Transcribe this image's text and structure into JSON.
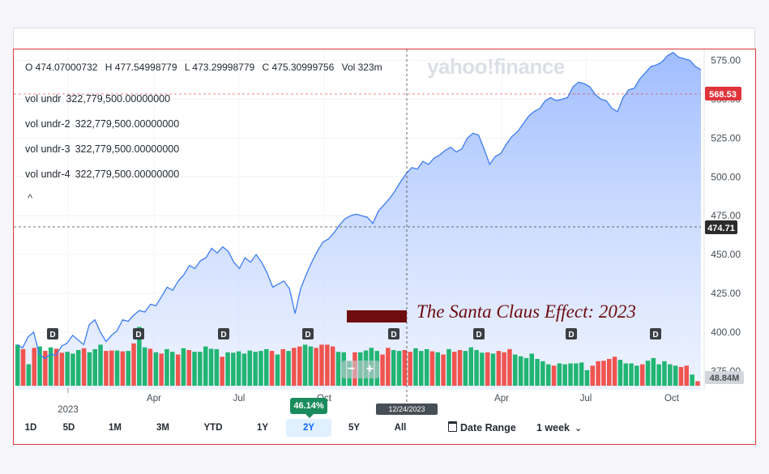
{
  "legend": {
    "open": "O 474.07000732",
    "high": "H 477.54998779",
    "low": "L 473.29998779",
    "close": "C 475.30999756",
    "vol": "Vol 323m"
  },
  "vol_indicators": [
    {
      "label": "vol undr",
      "value": "322,779,500.00000000"
    },
    {
      "label": "vol undr-2",
      "value": "322,779,500.00000000"
    },
    {
      "label": "vol undr-3",
      "value": "322,779,500.00000000"
    },
    {
      "label": "vol undr-4",
      "value": "322,779,500.00000000"
    }
  ],
  "collapse_symbol": "^",
  "watermark": "yahoo!finance",
  "annotation": "The Santa Claus Effect: 2023",
  "zoom": {
    "minus": "−",
    "plus": "+"
  },
  "crosshair_price": "474.71",
  "crosshair_date": "12/24/2023",
  "current_price": "568.53",
  "volume_label": "48.84M",
  "percent_change": "46.14%",
  "range_buttons": [
    "1D",
    "5D",
    "1M",
    "3M",
    "YTD",
    "1Y",
    "2Y",
    "5Y",
    "All"
  ],
  "active_range": "2Y",
  "date_range_label": "Date Range",
  "interval_label": "1 week",
  "colors": {
    "line": "#3d7df0",
    "up": "#21b573",
    "down": "#f0544f",
    "price_tag": "#e0343b",
    "annotation": "#6e0c10"
  },
  "chart_data": {
    "type": "area",
    "y_ticks": [
      "375.00",
      "400.00",
      "425.00",
      "450.00",
      "475.00",
      "500.00",
      "525.00",
      "550.00",
      "575.00"
    ],
    "ylim": [
      363,
      582
    ],
    "x_tick_labels": [
      "2023",
      "Apr",
      "Jul",
      "Oct",
      "Apr",
      "Jul",
      "Oct"
    ],
    "dividend_marker": "D",
    "price_series": [
      392,
      390,
      397,
      400,
      386,
      383,
      386,
      385,
      391,
      393,
      398,
      395,
      392,
      405,
      408,
      400,
      394,
      398,
      401,
      408,
      407,
      411,
      414,
      413,
      418,
      417,
      423,
      429,
      427,
      433,
      437,
      443,
      441,
      446,
      448,
      454,
      451,
      455,
      452,
      445,
      441,
      448,
      445,
      450,
      445,
      438,
      429,
      431,
      433,
      428,
      412,
      428,
      437,
      445,
      452,
      458,
      460,
      464,
      469,
      473,
      475,
      476,
      475,
      474,
      470,
      478,
      482,
      486,
      491,
      497,
      502,
      506,
      505,
      510,
      508,
      512,
      514,
      517,
      519,
      516,
      518,
      525,
      528,
      527,
      518,
      508,
      513,
      515,
      521,
      526,
      529,
      534,
      539,
      542,
      544,
      549,
      551,
      549,
      550,
      551,
      558,
      561,
      560,
      558,
      553,
      550,
      549,
      544,
      542,
      551,
      556,
      557,
      563,
      567,
      571,
      572,
      574,
      578,
      580,
      577,
      576,
      575,
      571,
      569
    ],
    "volume_series": [
      {
        "v": 0.92,
        "up": true
      },
      {
        "v": 0.82,
        "up": false
      },
      {
        "v": 0.48,
        "up": true
      },
      {
        "v": 0.85,
        "up": false
      },
      {
        "v": 0.88,
        "up": true
      },
      {
        "v": 0.78,
        "up": false
      },
      {
        "v": 0.86,
        "up": true
      },
      {
        "v": 0.83,
        "up": false
      },
      {
        "v": 0.74,
        "up": false
      },
      {
        "v": 0.76,
        "up": true
      },
      {
        "v": 0.72,
        "up": true
      },
      {
        "v": 0.8,
        "up": true
      },
      {
        "v": 0.84,
        "up": false
      },
      {
        "v": 0.75,
        "up": true
      },
      {
        "v": 0.82,
        "up": true
      },
      {
        "v": 0.92,
        "up": true
      },
      {
        "v": 0.78,
        "up": false
      },
      {
        "v": 0.79,
        "up": false
      },
      {
        "v": 0.79,
        "up": true
      },
      {
        "v": 0.77,
        "up": false
      },
      {
        "v": 0.78,
        "up": true
      },
      {
        "v": 0.95,
        "up": false
      },
      {
        "v": 1.32,
        "up": true
      },
      {
        "v": 0.86,
        "up": true
      },
      {
        "v": 0.83,
        "up": false
      },
      {
        "v": 0.75,
        "up": true
      },
      {
        "v": 0.72,
        "up": false
      },
      {
        "v": 0.82,
        "up": true
      },
      {
        "v": 0.76,
        "up": true
      },
      {
        "v": 0.7,
        "up": false
      },
      {
        "v": 0.84,
        "up": true
      },
      {
        "v": 0.8,
        "up": false
      },
      {
        "v": 0.76,
        "up": true
      },
      {
        "v": 0.76,
        "up": true
      },
      {
        "v": 0.88,
        "up": true
      },
      {
        "v": 0.83,
        "up": true
      },
      {
        "v": 0.82,
        "up": true
      },
      {
        "v": 0.65,
        "up": false
      },
      {
        "v": 0.75,
        "up": true
      },
      {
        "v": 0.74,
        "up": true
      },
      {
        "v": 0.77,
        "up": true
      },
      {
        "v": 0.72,
        "up": true
      },
      {
        "v": 0.79,
        "up": true
      },
      {
        "v": 0.76,
        "up": true
      },
      {
        "v": 0.78,
        "up": true
      },
      {
        "v": 0.82,
        "up": true
      },
      {
        "v": 0.78,
        "up": false
      },
      {
        "v": 0.7,
        "up": true
      },
      {
        "v": 0.82,
        "up": false
      },
      {
        "v": 0.78,
        "up": true
      },
      {
        "v": 0.85,
        "up": false
      },
      {
        "v": 0.88,
        "up": false
      },
      {
        "v": 0.92,
        "up": true
      },
      {
        "v": 0.88,
        "up": true
      },
      {
        "v": 0.85,
        "up": false
      },
      {
        "v": 0.92,
        "up": false
      },
      {
        "v": 0.92,
        "up": false
      },
      {
        "v": 0.88,
        "up": false
      },
      {
        "v": 0.76,
        "up": true
      },
      {
        "v": 0.75,
        "up": true
      },
      {
        "v": 0.55,
        "up": true
      },
      {
        "v": 0.75,
        "up": false
      },
      {
        "v": 0.75,
        "up": true
      },
      {
        "v": 0.79,
        "up": true
      },
      {
        "v": 0.85,
        "up": true
      },
      {
        "v": 0.78,
        "up": true
      },
      {
        "v": 0.7,
        "up": false
      },
      {
        "v": 0.85,
        "up": false
      },
      {
        "v": 0.8,
        "up": true
      },
      {
        "v": 0.78,
        "up": true
      },
      {
        "v": 0.8,
        "up": false
      },
      {
        "v": 0.76,
        "up": false
      },
      {
        "v": 0.84,
        "up": true
      },
      {
        "v": 0.78,
        "up": true
      },
      {
        "v": 0.82,
        "up": true
      },
      {
        "v": 0.77,
        "up": false
      },
      {
        "v": 0.75,
        "up": true
      },
      {
        "v": 0.7,
        "up": false
      },
      {
        "v": 0.82,
        "up": true
      },
      {
        "v": 0.76,
        "up": false
      },
      {
        "v": 0.8,
        "up": false
      },
      {
        "v": 0.78,
        "up": true
      },
      {
        "v": 0.86,
        "up": true
      },
      {
        "v": 0.8,
        "up": true
      },
      {
        "v": 0.74,
        "up": true
      },
      {
        "v": 0.75,
        "up": false
      },
      {
        "v": 0.72,
        "up": true
      },
      {
        "v": 0.78,
        "up": false
      },
      {
        "v": 0.75,
        "up": false
      },
      {
        "v": 0.82,
        "up": false
      },
      {
        "v": 0.7,
        "up": true
      },
      {
        "v": 0.66,
        "up": true
      },
      {
        "v": 0.62,
        "up": true
      },
      {
        "v": 0.72,
        "up": true
      },
      {
        "v": 0.6,
        "up": true
      },
      {
        "v": 0.55,
        "up": true
      },
      {
        "v": 0.48,
        "up": true
      },
      {
        "v": 0.45,
        "up": false
      },
      {
        "v": 0.5,
        "up": true
      },
      {
        "v": 0.48,
        "up": true
      },
      {
        "v": 0.5,
        "up": true
      },
      {
        "v": 0.5,
        "up": true
      },
      {
        "v": 0.52,
        "up": true
      },
      {
        "v": 0.35,
        "up": true
      },
      {
        "v": 0.45,
        "up": false
      },
      {
        "v": 0.55,
        "up": false
      },
      {
        "v": 0.56,
        "up": false
      },
      {
        "v": 0.6,
        "up": false
      },
      {
        "v": 0.65,
        "up": false
      },
      {
        "v": 0.58,
        "up": true
      },
      {
        "v": 0.5,
        "up": true
      },
      {
        "v": 0.5,
        "up": true
      },
      {
        "v": 0.45,
        "up": true
      },
      {
        "v": 0.48,
        "up": false
      },
      {
        "v": 0.56,
        "up": true
      },
      {
        "v": 0.62,
        "up": true
      },
      {
        "v": 0.48,
        "up": true
      },
      {
        "v": 0.55,
        "up": true
      },
      {
        "v": 0.48,
        "up": true
      },
      {
        "v": 0.45,
        "up": true
      },
      {
        "v": 0.42,
        "up": false
      },
      {
        "v": 0.45,
        "up": false
      },
      {
        "v": 0.25,
        "up": true
      },
      {
        "v": 0.1,
        "up": false
      }
    ],
    "dividend_markers_count": 8,
    "highlight_box": "dark-red bar near Dec 2023"
  }
}
